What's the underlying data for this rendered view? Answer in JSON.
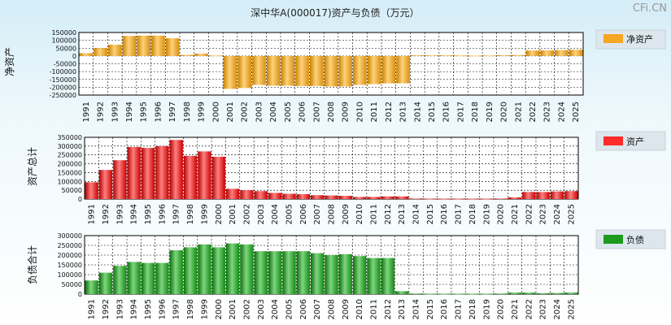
{
  "title": "深中华A(000017)资产与负债（万元）",
  "watermark": "CFi.CN",
  "chart_data": [
    {
      "type": "bar",
      "ylabel": "净资产",
      "legend": "净资产",
      "color": "#f5a623",
      "ylim": [
        -250000,
        150000
      ],
      "yticks": [
        150000,
        100000,
        50000,
        0,
        -50000,
        -100000,
        -150000,
        -200000,
        -250000
      ],
      "categories": [
        "1991",
        "1992",
        "1993",
        "1994",
        "1995",
        "1996",
        "1997",
        "1998",
        "1999",
        "2000",
        "2001",
        "2002",
        "2003",
        "2004",
        "2005",
        "2006",
        "2007",
        "2008",
        "2009",
        "2010",
        "2011",
        "2012",
        "2013",
        "2014",
        "2015",
        "2016",
        "2017",
        "2018",
        "2019",
        "2020",
        "2021",
        "2022",
        "2023",
        "2024",
        "2025"
      ],
      "values": [
        18000,
        50000,
        72000,
        128000,
        130000,
        130000,
        113000,
        7000,
        15000,
        3000,
        -210000,
        -205000,
        -185000,
        -190000,
        -190000,
        -192000,
        -192000,
        -195000,
        -195000,
        -185000,
        -180000,
        -175000,
        -175000,
        5000,
        4000,
        4000,
        3000,
        2000,
        3000,
        5000,
        6000,
        35000,
        36000,
        38000,
        40000
      ]
    },
    {
      "type": "bar",
      "ylabel": "资产总计",
      "legend": "资产",
      "color": "#ff2a2a",
      "ylim": [
        0,
        350000
      ],
      "yticks": [
        350000,
        300000,
        250000,
        200000,
        150000,
        100000,
        50000,
        0
      ],
      "categories": [
        "1991",
        "1992",
        "1993",
        "1994",
        "1995",
        "1996",
        "1997",
        "1998",
        "1999",
        "2000",
        "2001",
        "2002",
        "2003",
        "2004",
        "2005",
        "2006",
        "2007",
        "2008",
        "2009",
        "2010",
        "2011",
        "2012",
        "2013",
        "2014",
        "2015",
        "2016",
        "2017",
        "2018",
        "2019",
        "2020",
        "2021",
        "2022",
        "2023",
        "2024",
        "2025"
      ],
      "values": [
        95000,
        165000,
        220000,
        295000,
        290000,
        300000,
        335000,
        245000,
        270000,
        240000,
        58000,
        50000,
        45000,
        35000,
        30000,
        28000,
        22000,
        20000,
        18000,
        12000,
        12000,
        15000,
        15000,
        3000,
        2000,
        2000,
        2000,
        2000,
        2000,
        3000,
        10000,
        40000,
        40000,
        43000,
        45000
      ]
    },
    {
      "type": "bar",
      "ylabel": "负债合计",
      "legend": "负债",
      "color": "#1e9a1e",
      "ylim": [
        0,
        300000
      ],
      "yticks": [
        300000,
        250000,
        200000,
        150000,
        100000,
        50000,
        0
      ],
      "categories": [
        "1991",
        "1992",
        "1993",
        "1994",
        "1995",
        "1996",
        "1997",
        "1998",
        "1999",
        "2000",
        "2001",
        "2002",
        "2003",
        "2004",
        "2005",
        "2006",
        "2007",
        "2008",
        "2009",
        "2010",
        "2011",
        "2012",
        "2013",
        "2014",
        "2015",
        "2016",
        "2017",
        "2018",
        "2019",
        "2020",
        "2021",
        "2022",
        "2023",
        "2024",
        "2025"
      ],
      "values": [
        70000,
        110000,
        145000,
        165000,
        160000,
        160000,
        225000,
        240000,
        255000,
        240000,
        260000,
        255000,
        220000,
        220000,
        220000,
        220000,
        210000,
        200000,
        205000,
        195000,
        185000,
        185000,
        15000,
        3000,
        2000,
        2000,
        2000,
        2000,
        2000,
        3000,
        8000,
        8000,
        5000,
        6000,
        8000
      ]
    }
  ]
}
